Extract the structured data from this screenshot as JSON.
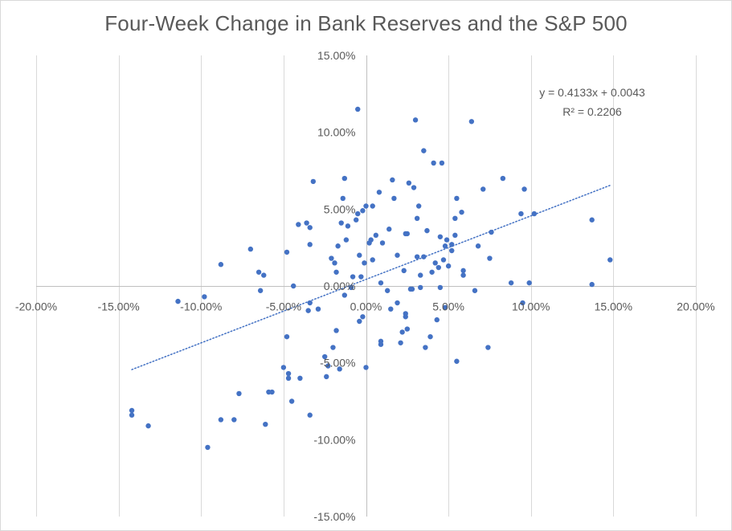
{
  "chart_data": {
    "type": "scatter",
    "title": "Four-Week Change in Bank Reserves and the S&P 500",
    "xlabel": "",
    "ylabel": "",
    "xlim": [
      -0.2,
      0.2
    ],
    "ylim": [
      -0.15,
      0.15
    ],
    "x_ticks": [
      -0.2,
      -0.15,
      -0.1,
      -0.05,
      0.0,
      0.05,
      0.1,
      0.15,
      0.2
    ],
    "x_tick_labels": [
      "-20.00%",
      "-15.00%",
      "-10.00%",
      "-5.00%",
      "0.00%",
      "5.00%",
      "10.00%",
      "15.00%",
      "20.00%"
    ],
    "y_ticks": [
      -0.15,
      -0.1,
      -0.05,
      0.0,
      0.05,
      0.1,
      0.15
    ],
    "y_tick_labels": [
      "-15.00%",
      "-10.00%",
      "-5.00%",
      "0.00%",
      "5.00%",
      "10.00%",
      "15.00%"
    ],
    "grid": "vertical",
    "marker_color": "#4472C4",
    "trendline": {
      "type": "linear",
      "slope": 0.4133,
      "intercept": 0.0043,
      "x_range": [
        -0.142,
        0.148
      ],
      "equation_label": "y = 0.4133x + 0.0043",
      "r2_label": "R² = 0.2206",
      "style": "dotted",
      "color": "#4472C4"
    },
    "points": [
      [
        -0.142,
        -0.081
      ],
      [
        -0.142,
        -0.084
      ],
      [
        -0.132,
        -0.091
      ],
      [
        -0.114,
        -0.01
      ],
      [
        -0.098,
        -0.007
      ],
      [
        -0.096,
        -0.105
      ],
      [
        -0.088,
        -0.087
      ],
      [
        -0.088,
        0.014
      ],
      [
        -0.08,
        -0.087
      ],
      [
        -0.077,
        -0.07
      ],
      [
        -0.07,
        0.024
      ],
      [
        -0.065,
        0.009
      ],
      [
        -0.064,
        -0.003
      ],
      [
        -0.062,
        0.007
      ],
      [
        -0.061,
        -0.09
      ],
      [
        -0.059,
        -0.069
      ],
      [
        -0.057,
        -0.069
      ],
      [
        -0.05,
        -0.053
      ],
      [
        -0.048,
        -0.033
      ],
      [
        -0.048,
        0.022
      ],
      [
        -0.047,
        -0.057
      ],
      [
        -0.047,
        -0.06
      ],
      [
        -0.045,
        -0.075
      ],
      [
        -0.044,
        0.0
      ],
      [
        -0.041,
        0.04
      ],
      [
        -0.04,
        -0.06
      ],
      [
        -0.036,
        0.041
      ],
      [
        -0.035,
        -0.016
      ],
      [
        -0.034,
        -0.084
      ],
      [
        -0.034,
        -0.011
      ],
      [
        -0.034,
        0.027
      ],
      [
        -0.034,
        0.038
      ],
      [
        -0.032,
        0.068
      ],
      [
        -0.029,
        -0.015
      ],
      [
        -0.025,
        -0.046
      ],
      [
        -0.024,
        -0.059
      ],
      [
        -0.023,
        -0.052
      ],
      [
        -0.021,
        0.018
      ],
      [
        -0.02,
        -0.04
      ],
      [
        -0.019,
        0.015
      ],
      [
        -0.018,
        -0.029
      ],
      [
        -0.018,
        0.009
      ],
      [
        -0.017,
        0.026
      ],
      [
        -0.016,
        -0.054
      ],
      [
        -0.015,
        0.041
      ],
      [
        -0.014,
        0.057
      ],
      [
        -0.013,
        -0.006
      ],
      [
        -0.013,
        0.07
      ],
      [
        -0.012,
        0.03
      ],
      [
        -0.011,
        0.039
      ],
      [
        -0.009,
        -0.001
      ],
      [
        -0.008,
        0.006
      ],
      [
        -0.006,
        0.043
      ],
      [
        -0.005,
        0.047
      ],
      [
        -0.005,
        0.115
      ],
      [
        -0.004,
        -0.023
      ],
      [
        -0.004,
        0.02
      ],
      [
        -0.003,
        0.006
      ],
      [
        -0.002,
        -0.02
      ],
      [
        -0.002,
        0.049
      ],
      [
        -0.001,
        0.015
      ],
      [
        0.0,
        -0.053
      ],
      [
        0.0,
        0.052
      ],
      [
        0.002,
        0.028
      ],
      [
        0.003,
        0.03
      ],
      [
        0.004,
        0.017
      ],
      [
        0.004,
        0.052
      ],
      [
        0.006,
        0.033
      ],
      [
        0.008,
        0.061
      ],
      [
        0.009,
        -0.038
      ],
      [
        0.009,
        -0.036
      ],
      [
        0.009,
        0.002
      ],
      [
        0.01,
        0.028
      ],
      [
        0.013,
        -0.003
      ],
      [
        0.014,
        0.037
      ],
      [
        0.015,
        -0.015
      ],
      [
        0.016,
        0.069
      ],
      [
        0.017,
        0.057
      ],
      [
        0.019,
        0.02
      ],
      [
        0.019,
        -0.011
      ],
      [
        0.021,
        -0.037
      ],
      [
        0.022,
        -0.03
      ],
      [
        0.023,
        0.01
      ],
      [
        0.024,
        -0.018
      ],
      [
        0.024,
        -0.02
      ],
      [
        0.024,
        0.034
      ],
      [
        0.025,
        -0.028
      ],
      [
        0.025,
        0.034
      ],
      [
        0.026,
        0.067
      ],
      [
        0.027,
        -0.002
      ],
      [
        0.028,
        -0.002
      ],
      [
        0.029,
        0.064
      ],
      [
        0.03,
        0.108
      ],
      [
        0.031,
        0.044
      ],
      [
        0.031,
        0.019
      ],
      [
        0.032,
        0.052
      ],
      [
        0.033,
        0.007
      ],
      [
        0.033,
        -0.001
      ],
      [
        0.035,
        0.088
      ],
      [
        0.035,
        0.019
      ],
      [
        0.036,
        -0.04
      ],
      [
        0.037,
        0.036
      ],
      [
        0.039,
        -0.033
      ],
      [
        0.04,
        0.009
      ],
      [
        0.041,
        0.08
      ],
      [
        0.042,
        0.015
      ],
      [
        0.043,
        -0.022
      ],
      [
        0.044,
        0.012
      ],
      [
        0.045,
        0.032
      ],
      [
        0.045,
        -0.001
      ],
      [
        0.046,
        0.08
      ],
      [
        0.047,
        0.017
      ],
      [
        0.048,
        -0.014
      ],
      [
        0.048,
        0.026
      ],
      [
        0.049,
        0.03
      ],
      [
        0.05,
        0.013
      ],
      [
        0.052,
        0.027
      ],
      [
        0.052,
        0.023
      ],
      [
        0.054,
        0.033
      ],
      [
        0.054,
        0.044
      ],
      [
        0.055,
        -0.049
      ],
      [
        0.055,
        0.057
      ],
      [
        0.058,
        0.048
      ],
      [
        0.059,
        0.01
      ],
      [
        0.059,
        0.007
      ],
      [
        0.064,
        0.107
      ],
      [
        0.066,
        -0.003
      ],
      [
        0.068,
        0.026
      ],
      [
        0.071,
        0.063
      ],
      [
        0.074,
        -0.04
      ],
      [
        0.075,
        0.018
      ],
      [
        0.076,
        0.035
      ],
      [
        0.083,
        0.07
      ],
      [
        0.088,
        0.002
      ],
      [
        0.094,
        0.047
      ],
      [
        0.095,
        -0.011
      ],
      [
        0.096,
        0.063
      ],
      [
        0.099,
        0.002
      ],
      [
        0.102,
        0.047
      ],
      [
        0.137,
        0.001
      ],
      [
        0.137,
        0.043
      ],
      [
        0.148,
        0.017
      ]
    ]
  }
}
